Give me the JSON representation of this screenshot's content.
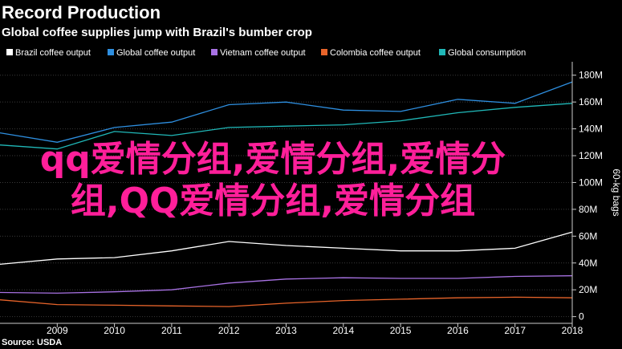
{
  "header": {
    "title": "Record Production",
    "subtitle": "Global coffee supplies jump with Brazil's bumber crop"
  },
  "source": "Source: USDA",
  "overlay": {
    "line1": "qq爱情分组,爱情分组,爱情分",
    "line2": "组,QQ爱情分组,爱情分组",
    "color": "#ff1f9a"
  },
  "chart_data": {
    "type": "line",
    "x": [
      2008,
      2009,
      2010,
      2011,
      2012,
      2013,
      2014,
      2015,
      2016,
      2017,
      2018
    ],
    "xticks": [
      2009,
      2010,
      2011,
      2012,
      2013,
      2014,
      2015,
      2016,
      2017,
      2018
    ],
    "xlim": [
      2008,
      2018
    ],
    "ylim": [
      -5,
      190
    ],
    "yticks": [
      0,
      20,
      40,
      60,
      80,
      100,
      120,
      140,
      160,
      180
    ],
    "ytick_labels": [
      "0",
      "20M",
      "40M",
      "60M",
      "80M",
      "100M",
      "120M",
      "140M",
      "160M",
      "180M"
    ],
    "ylabel": "60-kg bags",
    "grid": true,
    "legend_position": "top",
    "series": [
      {
        "name": "Brazil coffee output",
        "color": "#ffffff",
        "values": [
          39,
          43,
          44,
          49,
          56,
          53,
          51,
          49,
          49,
          51,
          63
        ]
      },
      {
        "name": "Global coffee output",
        "color": "#2e8fe0",
        "values": [
          137,
          130,
          141,
          145,
          158,
          160,
          154,
          153,
          162,
          159,
          175
        ]
      },
      {
        "name": "Vietnam coffee output",
        "color": "#a872e3",
        "values": [
          18,
          17.5,
          18.5,
          20,
          25,
          28,
          29,
          28.5,
          28.5,
          30,
          30.5
        ]
      },
      {
        "name": "Colombia coffee output",
        "color": "#e8642a",
        "values": [
          12.5,
          9,
          8.5,
          8,
          7.5,
          10,
          12,
          13,
          14,
          14.5,
          14
        ]
      },
      {
        "name": "Global consumption",
        "color": "#20b8b8",
        "values": [
          128,
          125,
          138,
          135,
          141,
          142,
          143,
          146,
          152,
          156,
          159
        ]
      }
    ]
  }
}
